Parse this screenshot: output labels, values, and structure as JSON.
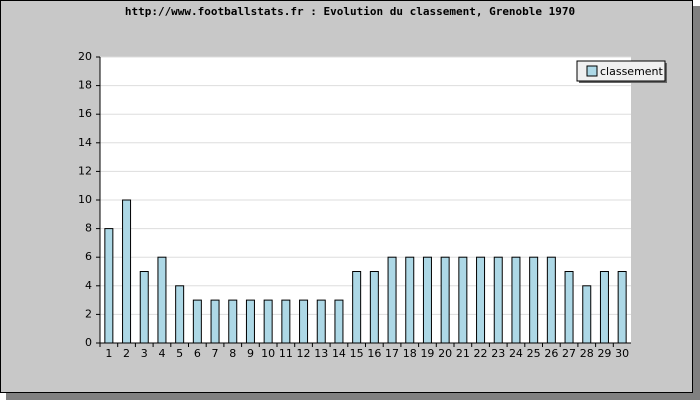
{
  "chart_data": {
    "type": "bar",
    "title": "http://www.footballstats.fr : Evolution du classement, Grenoble 1970",
    "categories": [
      "1",
      "2",
      "3",
      "4",
      "5",
      "6",
      "7",
      "8",
      "9",
      "10",
      "11",
      "12",
      "13",
      "14",
      "15",
      "16",
      "17",
      "18",
      "19",
      "20",
      "21",
      "22",
      "23",
      "24",
      "25",
      "26",
      "27",
      "28",
      "29",
      "30"
    ],
    "series": [
      {
        "name": "classement",
        "color": "#add8e6",
        "values": [
          8,
          10,
          5,
          6,
          4,
          3,
          3,
          3,
          3,
          3,
          3,
          3,
          3,
          3,
          5,
          5,
          6,
          6,
          6,
          6,
          6,
          6,
          6,
          6,
          6,
          6,
          5,
          4,
          5,
          5
        ]
      }
    ],
    "ylim": [
      0,
      20
    ],
    "yticks": [
      0,
      2,
      4,
      6,
      8,
      10,
      12,
      14,
      16,
      18,
      20
    ],
    "grid": true,
    "legend": "top-right"
  }
}
